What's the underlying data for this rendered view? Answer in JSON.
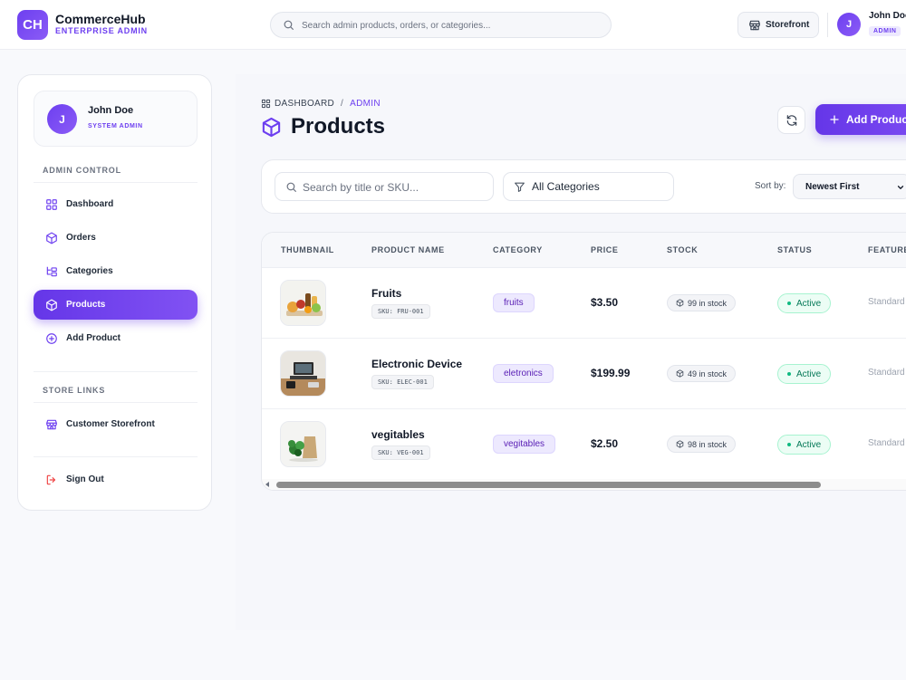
{
  "app": {
    "logo_initials": "CH",
    "name": "CommerceHub",
    "subtitle": "ENTERPRISE ADMIN"
  },
  "topbar": {
    "search_placeholder": "Search admin products, orders, or categories...",
    "storefront_label": "Storefront",
    "user_initial": "J",
    "user_name": "John Doe",
    "user_role": "ADMIN"
  },
  "sidebar": {
    "user": {
      "initial": "J",
      "name": "John Doe",
      "role": "SYSTEM ADMIN"
    },
    "admin_section_title": "ADMIN CONTROL",
    "admin_items": [
      {
        "label": "Dashboard",
        "icon": "dashboard-grid-icon"
      },
      {
        "label": "Orders",
        "icon": "box-icon"
      },
      {
        "label": "Categories",
        "icon": "categories-tree-icon"
      },
      {
        "label": "Products",
        "icon": "box-icon",
        "active": true
      },
      {
        "label": "Add Product",
        "icon": "plus-circle-icon"
      }
    ],
    "store_section_title": "STORE LINKS",
    "store_items": [
      {
        "label": "Customer Storefront",
        "icon": "store-icon"
      }
    ],
    "sign_out_label": "Sign Out"
  },
  "main": {
    "breadcrumb": {
      "root": "DASHBOARD",
      "separator": "/",
      "current": "ADMIN"
    },
    "title": "Products",
    "add_button_label": "Add Product",
    "filters": {
      "search_placeholder": "Search by title or SKU...",
      "category_value": "All Categories",
      "sort_label": "Sort by:",
      "sort_value": "Newest First"
    },
    "table": {
      "columns": [
        "THUMBNAIL",
        "PRODUCT NAME",
        "CATEGORY",
        "PRICE",
        "STOCK",
        "STATUS",
        "FEATURE"
      ],
      "rows": [
        {
          "name": "Fruits",
          "sku": "SKU: FRU-001",
          "category": "fruits",
          "price": "$3.50",
          "stock": "99 in stock",
          "status": "Active",
          "featured": "Standard",
          "thumb": "fruits-image"
        },
        {
          "name": "Electronic Device",
          "sku": "SKU: ELEC-001",
          "category": "eletronics",
          "price": "$199.99",
          "stock": "49 in stock",
          "status": "Active",
          "featured": "Standard",
          "thumb": "electronics-image"
        },
        {
          "name": "vegitables",
          "sku": "SKU: VEG-001",
          "category": "vegitables",
          "price": "$2.50",
          "stock": "98 in stock",
          "status": "Active",
          "featured": "Standard",
          "thumb": "vegetables-image"
        }
      ]
    }
  },
  "colors": {
    "accent": "#6d3ff0",
    "active_status": "#047857",
    "sign_out": "#ef4444"
  }
}
